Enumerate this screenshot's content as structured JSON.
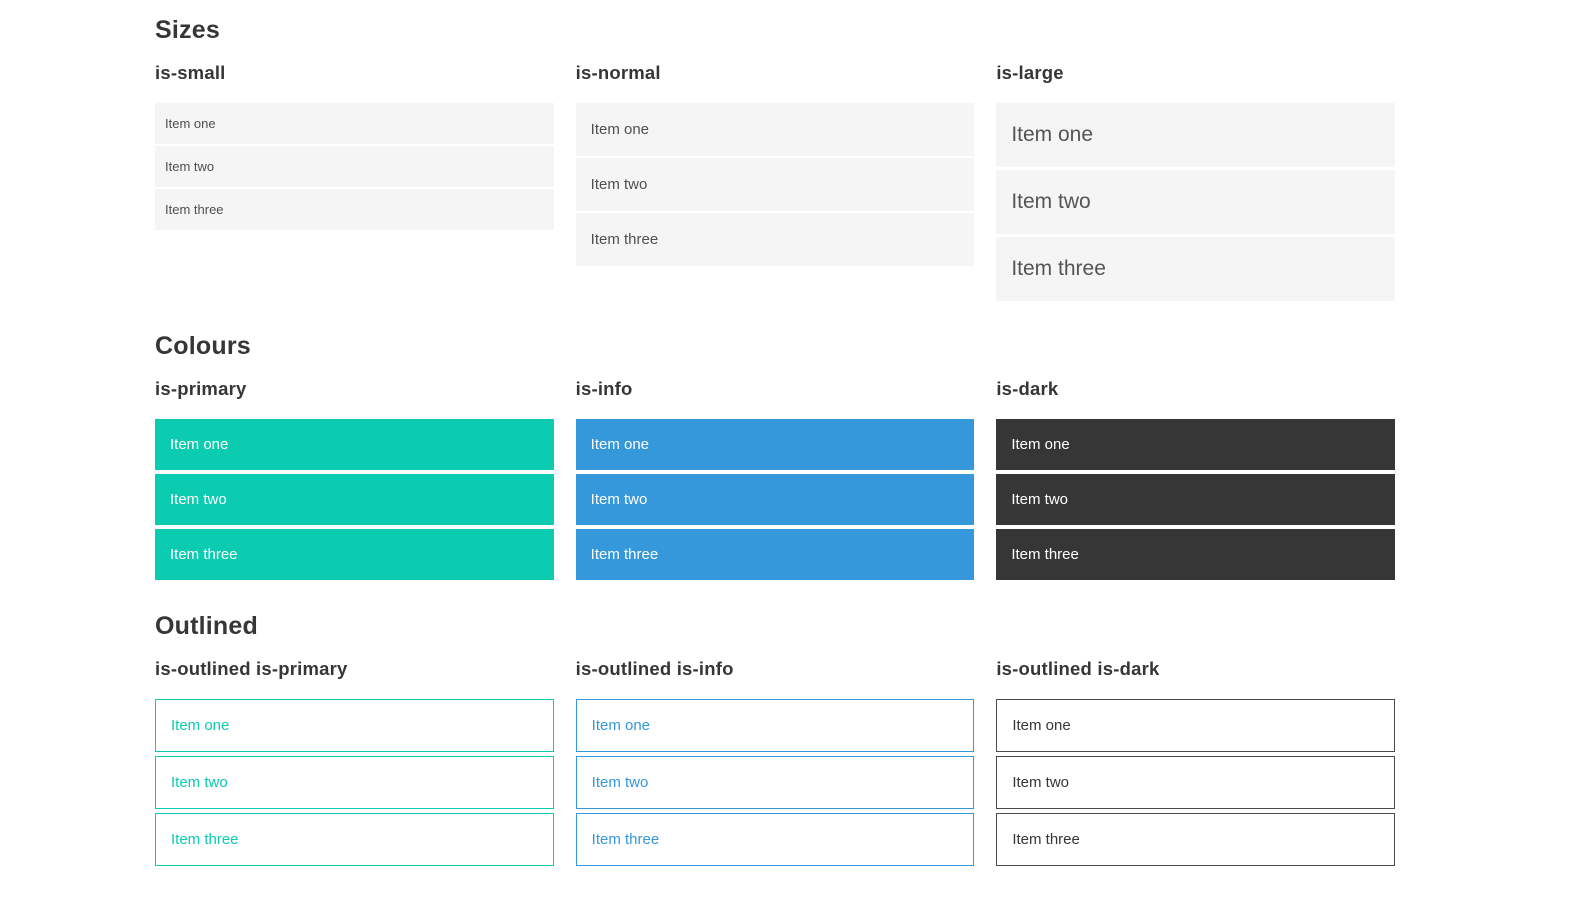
{
  "colors": {
    "primary": "#0bcbb0",
    "info": "#3498db",
    "dark": "#363636",
    "outlined_dark_border": "#4a4a4a",
    "item_bg": "#f5f5f5",
    "item_text": "#4f4f4f",
    "heading": "#363636"
  },
  "sections": [
    {
      "title": "Sizes",
      "columns": [
        {
          "label": "is-small",
          "items": [
            "Item one",
            "Item two",
            "Item three"
          ]
        },
        {
          "label": "is-normal",
          "items": [
            "Item one",
            "Item two",
            "Item three"
          ]
        },
        {
          "label": "is-large",
          "items": [
            "Item one",
            "Item two",
            "Item three"
          ]
        }
      ]
    },
    {
      "title": "Colours",
      "columns": [
        {
          "label": "is-primary",
          "items": [
            "Item one",
            "Item two",
            "Item three"
          ]
        },
        {
          "label": "is-info",
          "items": [
            "Item one",
            "Item two",
            "Item three"
          ]
        },
        {
          "label": "is-dark",
          "items": [
            "Item one",
            "Item two",
            "Item three"
          ]
        }
      ]
    },
    {
      "title": "Outlined",
      "columns": [
        {
          "label": "is-outlined is-primary",
          "items": [
            "Item one",
            "Item two",
            "Item three"
          ]
        },
        {
          "label": "is-outlined is-info",
          "items": [
            "Item one",
            "Item two",
            "Item three"
          ]
        },
        {
          "label": "is-outlined is-dark",
          "items": [
            "Item one",
            "Item two",
            "Item three"
          ]
        }
      ]
    }
  ]
}
